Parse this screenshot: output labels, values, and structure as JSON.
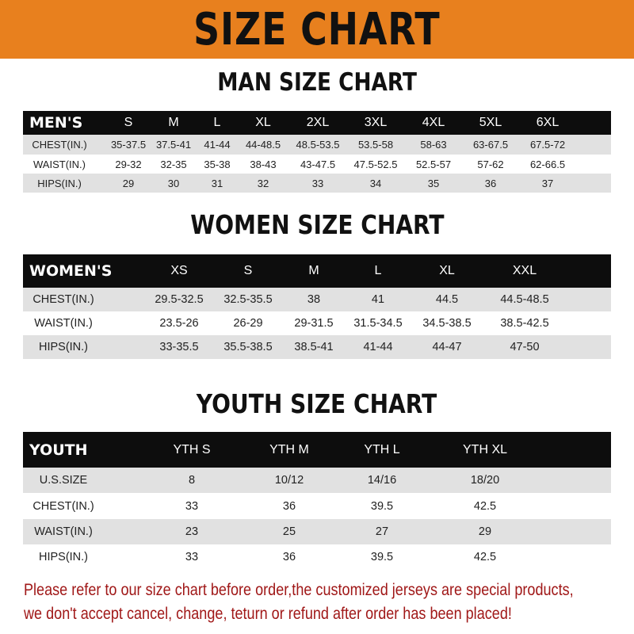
{
  "banner_title": "SIZE CHART",
  "colors": {
    "banner": "#e8801e",
    "header_row": "#0d0d0d",
    "stripe": "#e1e1e1",
    "note": "#a01818"
  },
  "men": {
    "title": "MAN SIZE CHART",
    "columns": [
      "MEN'S",
      "S",
      "M",
      "L",
      "XL",
      "2XL",
      "3XL",
      "4XL",
      "5XL",
      "6XL"
    ],
    "rows": [
      [
        "CHEST(IN.)",
        "35-37.5",
        "37.5-41",
        "41-44",
        "44-48.5",
        "48.5-53.5",
        "53.5-58",
        "58-63",
        "63-67.5",
        "67.5-72"
      ],
      [
        "WAIST(IN.)",
        "29-32",
        "32-35",
        "35-38",
        "38-43",
        "43-47.5",
        "47.5-52.5",
        "52.5-57",
        "57-62",
        "62-66.5"
      ],
      [
        "HIPS(IN.)",
        "29",
        "30",
        "31",
        "32",
        "33",
        "34",
        "35",
        "36",
        "37"
      ]
    ]
  },
  "women": {
    "title": "WOMEN SIZE CHART",
    "columns": [
      "WOMEN'S",
      "XS",
      "S",
      "M",
      "L",
      "XL",
      "XXL"
    ],
    "rows": [
      [
        "CHEST(IN.)",
        "29.5-32.5",
        "32.5-35.5",
        "38",
        "41",
        "44.5",
        "44.5-48.5"
      ],
      [
        "WAIST(IN.)",
        "23.5-26",
        "26-29",
        "29-31.5",
        "31.5-34.5",
        "34.5-38.5",
        "38.5-42.5"
      ],
      [
        "HIPS(IN.)",
        "33-35.5",
        "35.5-38.5",
        "38.5-41",
        "41-44",
        "44-47",
        "47-50"
      ]
    ]
  },
  "youth": {
    "title": "YOUTH SIZE CHART",
    "columns": [
      "YOUTH",
      "YTH S",
      "YTH M",
      "YTH L",
      "YTH XL"
    ],
    "rows": [
      [
        "U.S.SIZE",
        "8",
        "10/12",
        "14/16",
        "18/20"
      ],
      [
        "CHEST(IN.)",
        "33",
        "36",
        "39.5",
        "42.5"
      ],
      [
        "WAIST(IN.)",
        "23",
        "25",
        "27",
        "29"
      ],
      [
        "HIPS(IN.)",
        "33",
        "36",
        "39.5",
        "42.5"
      ]
    ]
  },
  "note": {
    "line1": "Please refer to our size chart before order,the customized jerseys are special products,",
    "line2": "we don't accept cancel, change, teturn or refund after order has been placed!"
  }
}
